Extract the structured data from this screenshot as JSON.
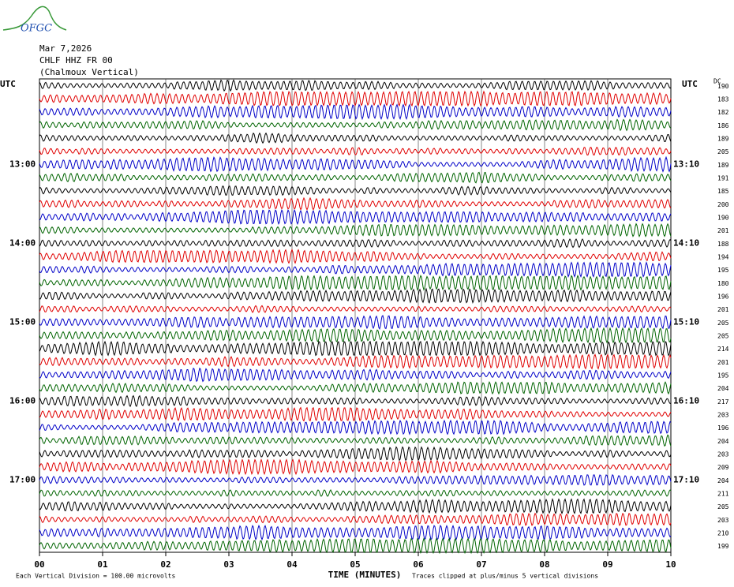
{
  "logo": "OFGC",
  "header": {
    "date": "Mar 7,2026",
    "station": "CHLF HHZ FR 00",
    "location": "(Chalmoux Vertical)"
  },
  "chart_data": {
    "type": "helicorder",
    "left_title": "UTC",
    "right_title": "UTC",
    "dc_title": "DC",
    "left_labels": [
      null,
      null,
      null,
      null,
      null,
      null,
      "13:00",
      null,
      null,
      null,
      null,
      null,
      "14:00",
      null,
      null,
      null,
      null,
      null,
      "15:00",
      null,
      null,
      null,
      null,
      null,
      "16:00",
      null,
      null,
      null,
      null,
      null,
      "17:00",
      null,
      null,
      null,
      null,
      null
    ],
    "right_labels": [
      null,
      null,
      null,
      null,
      null,
      null,
      "13:10",
      null,
      null,
      null,
      null,
      null,
      "14:10",
      null,
      null,
      null,
      null,
      null,
      "15:10",
      null,
      null,
      null,
      null,
      null,
      "16:10",
      null,
      null,
      null,
      null,
      null,
      "17:10",
      null,
      null,
      null,
      null,
      null
    ],
    "dc_offsets": [
      190,
      183,
      182,
      186,
      189,
      205,
      189,
      191,
      185,
      200,
      190,
      201,
      188,
      194,
      195,
      180,
      196,
      201,
      205,
      205,
      214,
      201,
      195,
      204,
      217,
      203,
      196,
      204,
      203,
      209,
      204,
      211,
      205,
      203,
      210,
      199
    ],
    "colors": [
      "#000000",
      "#e00000",
      "#0000c8",
      "#006400"
    ],
    "xlim": [
      0,
      10
    ],
    "xticks": [
      {
        "value": 0,
        "label": "00"
      },
      {
        "value": 1,
        "label": "01"
      },
      {
        "value": 2,
        "label": "02"
      },
      {
        "value": 3,
        "label": "03"
      },
      {
        "value": 4,
        "label": "04"
      },
      {
        "value": 5,
        "label": "05"
      },
      {
        "value": 6,
        "label": "06"
      },
      {
        "value": 7,
        "label": "07"
      },
      {
        "value": 8,
        "label": "08"
      },
      {
        "value": 9,
        "label": "09"
      },
      {
        "value": 10,
        "label": "10"
      }
    ],
    "xlabel": "TIME (MINUTES)",
    "grid": true,
    "scale_note": "Each Vertical Division =  100.00 microvolts",
    "clip_note": "Traces clipped at plus/minus 5 vertical divisions"
  }
}
